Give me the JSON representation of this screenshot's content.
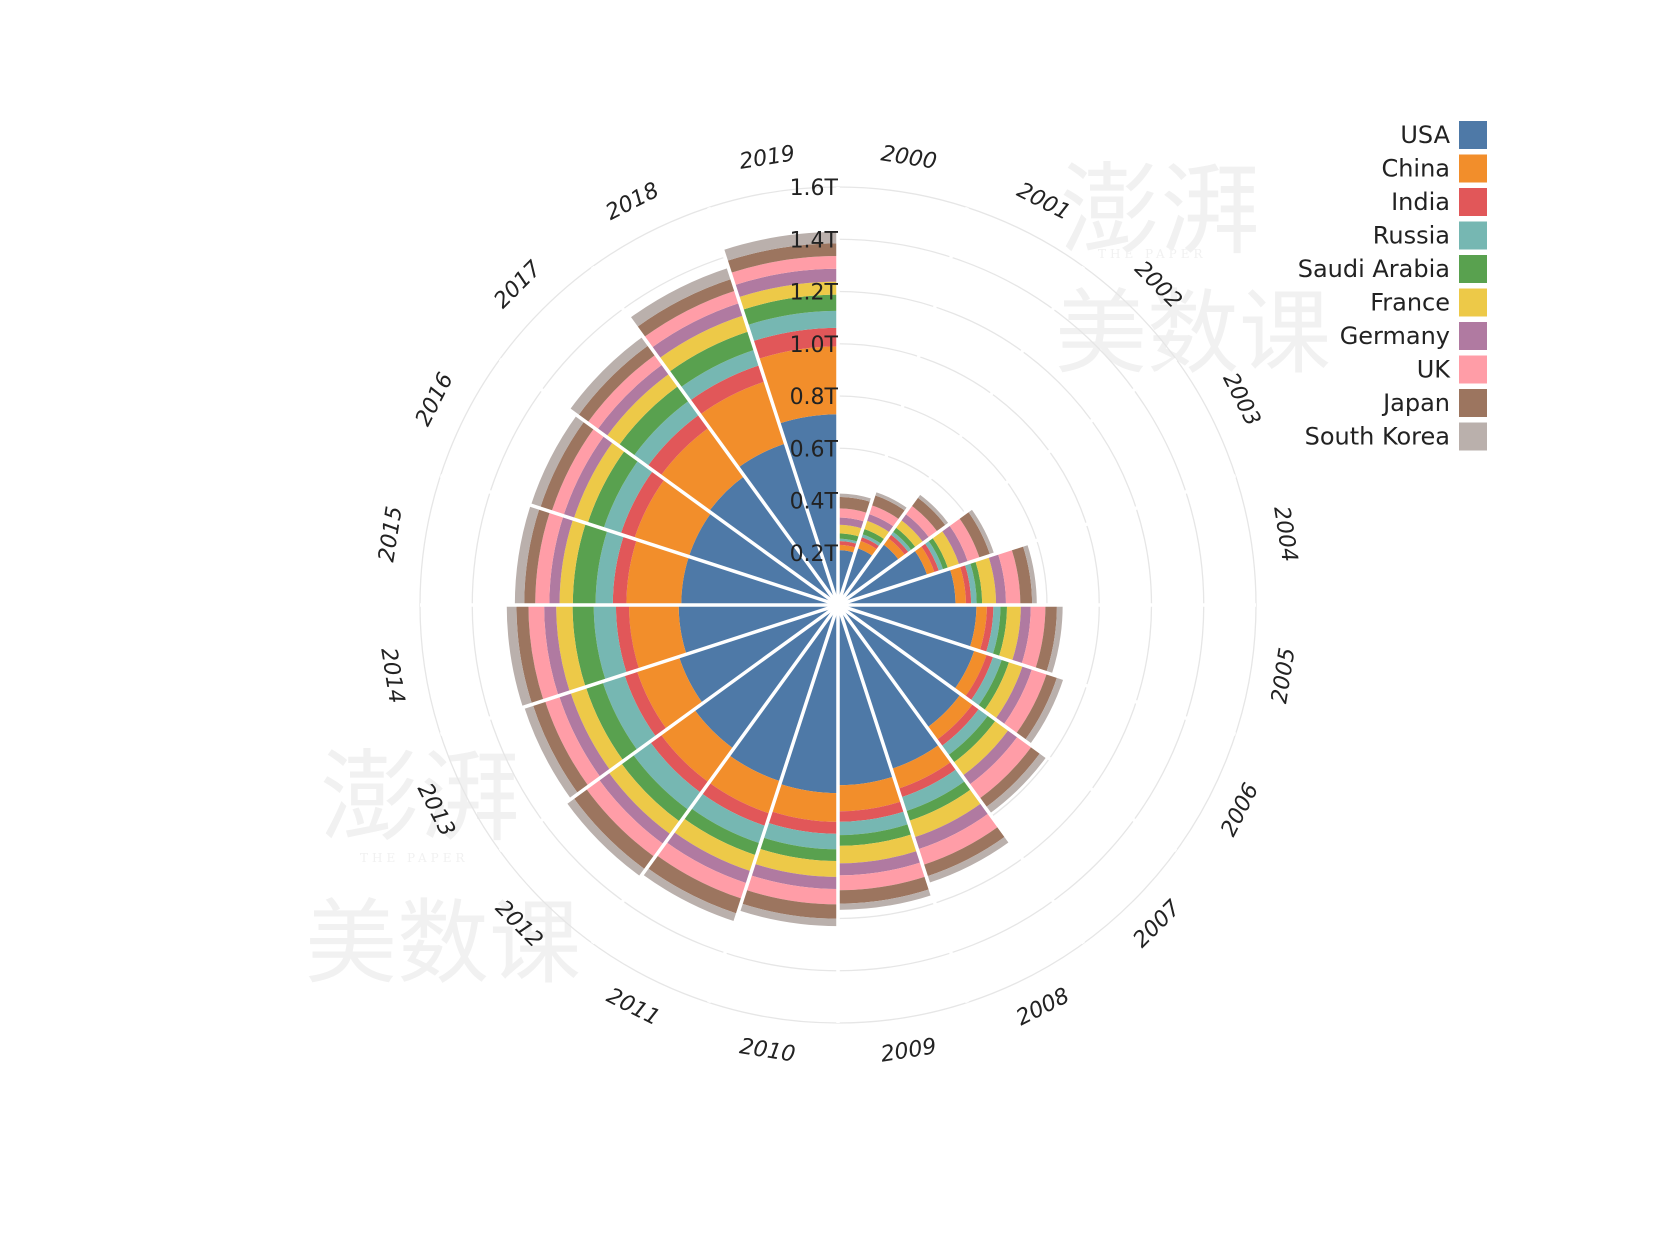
{
  "watermark": {
    "main": "澎湃",
    "sub": "THE PAPER",
    "course": "美数课"
  },
  "colors": {
    "USA": "#4E79A7",
    "China": "#F28E2B",
    "India": "#E15759",
    "Russia": "#76B7B2",
    "Saudi Arabia": "#59A14F",
    "France": "#EDC948",
    "Germany": "#B07AA1",
    "UK": "#FF9DA7",
    "Japan": "#9C755F",
    "South Korea": "#BAB0AC"
  },
  "chart_data": {
    "type": "bar",
    "subtype": "radial-stacked",
    "title": "",
    "xlabel": "",
    "ylabel": "",
    "grid": true,
    "legend_position": "top-right",
    "categories": [
      "2000",
      "2001",
      "2002",
      "2003",
      "2004",
      "2005",
      "2006",
      "2007",
      "2008",
      "2009",
      "2010",
      "2011",
      "2012",
      "2013",
      "2014",
      "2015",
      "2016",
      "2017",
      "2018",
      "2019"
    ],
    "y_ticks": [
      "0.2T",
      "0.4T",
      "0.6T",
      "0.8T",
      "1.0T",
      "1.2T",
      "1.4T",
      "1.6T"
    ],
    "ylim": [
      0,
      1.6
    ],
    "series": [
      {
        "name": "USA",
        "values": [
          0.21,
          0.23,
          0.29,
          0.36,
          0.45,
          0.53,
          0.55,
          0.58,
          0.66,
          0.69,
          0.72,
          0.71,
          0.68,
          0.64,
          0.61,
          0.6,
          0.6,
          0.61,
          0.65,
          0.73
        ]
      },
      {
        "name": "China",
        "values": [
          0.02,
          0.03,
          0.03,
          0.03,
          0.04,
          0.04,
          0.05,
          0.06,
          0.08,
          0.1,
          0.11,
          0.13,
          0.16,
          0.17,
          0.19,
          0.21,
          0.22,
          0.23,
          0.25,
          0.26
        ]
      },
      {
        "name": "India",
        "values": [
          0.015,
          0.015,
          0.017,
          0.018,
          0.02,
          0.025,
          0.026,
          0.03,
          0.035,
          0.04,
          0.046,
          0.05,
          0.05,
          0.05,
          0.05,
          0.052,
          0.055,
          0.062,
          0.066,
          0.071
        ]
      },
      {
        "name": "Russia",
        "values": [
          0.009,
          0.012,
          0.014,
          0.017,
          0.021,
          0.027,
          0.035,
          0.043,
          0.056,
          0.051,
          0.059,
          0.07,
          0.081,
          0.088,
          0.085,
          0.066,
          0.069,
          0.066,
          0.062,
          0.065
        ]
      },
      {
        "name": "Saudi Arabia",
        "values": [
          0.02,
          0.021,
          0.019,
          0.019,
          0.021,
          0.025,
          0.029,
          0.035,
          0.039,
          0.041,
          0.045,
          0.048,
          0.056,
          0.067,
          0.081,
          0.087,
          0.064,
          0.07,
          0.074,
          0.062
        ]
      },
      {
        "name": "France",
        "values": [
          0.033,
          0.033,
          0.035,
          0.045,
          0.053,
          0.053,
          0.054,
          0.061,
          0.066,
          0.067,
          0.061,
          0.064,
          0.06,
          0.062,
          0.063,
          0.051,
          0.056,
          0.058,
          0.064,
          0.05
        ]
      },
      {
        "name": "Germany",
        "values": [
          0.028,
          0.027,
          0.029,
          0.035,
          0.038,
          0.038,
          0.038,
          0.043,
          0.048,
          0.046,
          0.046,
          0.049,
          0.046,
          0.046,
          0.046,
          0.039,
          0.041,
          0.044,
          0.05,
          0.049
        ]
      },
      {
        "name": "UK",
        "values": [
          0.035,
          0.035,
          0.039,
          0.047,
          0.055,
          0.056,
          0.059,
          0.066,
          0.063,
          0.057,
          0.059,
          0.062,
          0.06,
          0.057,
          0.06,
          0.054,
          0.048,
          0.046,
          0.05,
          0.049
        ]
      },
      {
        "name": "Japan",
        "values": [
          0.044,
          0.04,
          0.039,
          0.042,
          0.045,
          0.044,
          0.042,
          0.041,
          0.046,
          0.051,
          0.055,
          0.06,
          0.06,
          0.049,
          0.046,
          0.042,
          0.046,
          0.045,
          0.047,
          0.048
        ]
      },
      {
        "name": "South Korea",
        "values": [
          0.013,
          0.013,
          0.014,
          0.016,
          0.018,
          0.022,
          0.025,
          0.028,
          0.026,
          0.024,
          0.028,
          0.031,
          0.032,
          0.034,
          0.037,
          0.036,
          0.037,
          0.039,
          0.044,
          0.044
        ]
      }
    ]
  }
}
